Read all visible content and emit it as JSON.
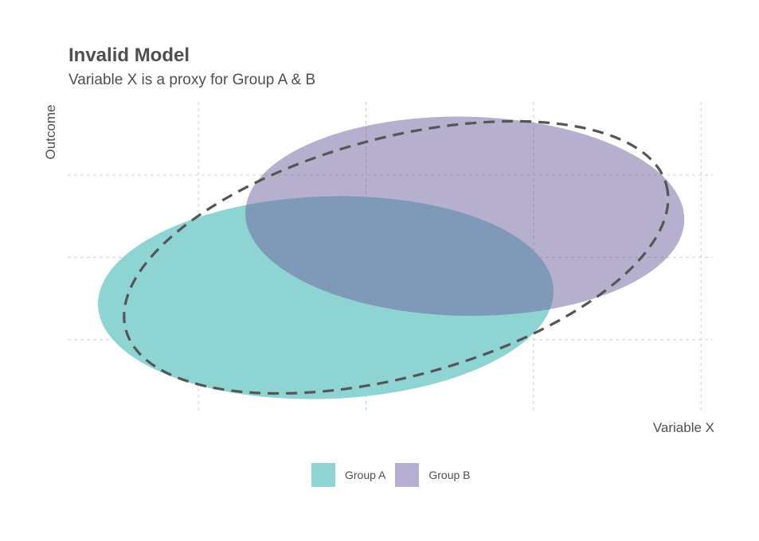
{
  "chart_data": {
    "type": "ellipse",
    "title": "Invalid Model",
    "subtitle": "Variable X is a proxy for Group A & B",
    "xlabel": "Variable X",
    "ylabel": "Outcome",
    "xlim": [
      0.22,
      4.07
    ],
    "ylim": [
      0.1,
      3.89
    ],
    "grid": true,
    "x_gridlines": [
      1,
      2,
      3,
      4
    ],
    "y_gridlines": [
      1,
      2,
      3
    ],
    "tick_labels_shown": false,
    "legend_position": "bottom",
    "series": [
      {
        "name": "Group A",
        "color": "#8ed4d3",
        "center": [
          1.76,
          1.51
        ],
        "radii": [
          1.36,
          1.23
        ],
        "angle_deg": -2
      },
      {
        "name": "Group B",
        "color": "#71639f",
        "opacity": 0.51,
        "legend_color": "#b6afd3",
        "center": [
          2.59,
          2.5
        ],
        "radii": [
          1.31,
          1.21
        ],
        "angle_deg": 1
      }
    ],
    "model_ellipse": {
      "style": "dashed",
      "color": "#555555",
      "center": [
        2.18,
        2.0
      ],
      "radii": [
        1.67,
        1.45
      ],
      "angle_deg": -15
    }
  }
}
